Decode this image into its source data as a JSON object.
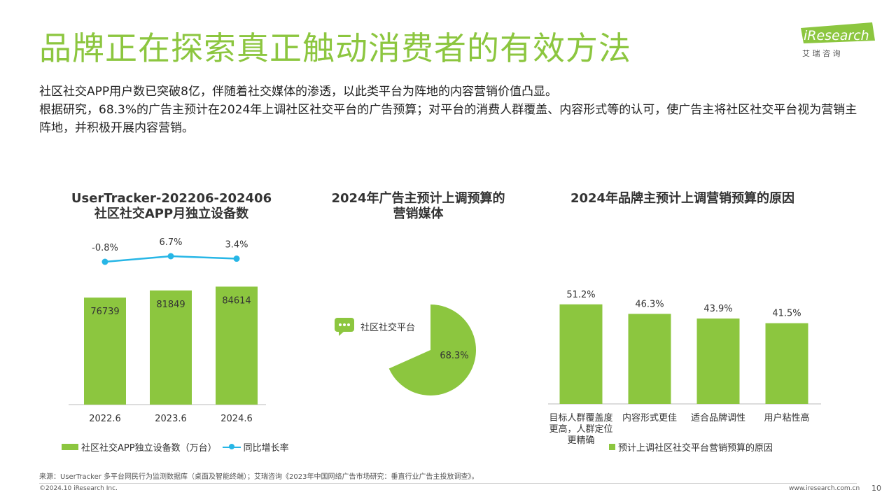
{
  "title": "品牌正在探索真正触动消费者的有效方法",
  "logo": {
    "brand": "iResearch",
    "cn": "艾 瑞 咨 询"
  },
  "paragraphs": [
    "社区社交APP用户数已突破8亿，伴随着社交媒体的渗透，以此类平台为阵地的内容营销价值凸显。",
    "根据研究，68.3%的广告主预计在2024年上调社区社交平台的广告预算；对平台的消费人群覆盖、内容形式等的认可，使广告主将社区社交平台视为营销主阵地，并积极开展内容营销。"
  ],
  "colors": {
    "accent": "#8cc63f",
    "line": "#27b6e6"
  },
  "chart_data": [
    {
      "type": "bar",
      "title_lines": [
        "UserTracker-202206-202406",
        "社区社交APP月独立设备数"
      ],
      "categories": [
        "2022.6",
        "2023.6",
        "2024.6"
      ],
      "series": [
        {
          "name": "社区社交APP独立设备数（万台）",
          "type": "bar",
          "values": [
            76739,
            81849,
            84614
          ]
        },
        {
          "name": "同比增长率",
          "type": "line",
          "values": [
            -0.8,
            6.7,
            3.4
          ],
          "labels": [
            "-0.8%",
            "6.7%",
            "3.4%"
          ]
        }
      ]
    },
    {
      "type": "pie",
      "title_lines": [
        "2024年广告主预计上调预算的",
        "营销媒体"
      ],
      "slices": [
        {
          "name": "社区社交平台",
          "value": 68.3,
          "label": "68.3%"
        }
      ],
      "icon": "chat-bubbles-icon"
    },
    {
      "type": "bar",
      "title_lines": [
        "2024年品牌主预计上调营销预算的原因"
      ],
      "categories": [
        "目标人群覆盖度更高，人群定位更精确",
        "内容形式更佳",
        "适合品牌调性",
        "用户粘性高"
      ],
      "category_lines": [
        [
          "目标人群覆盖度",
          "更高，人群定位",
          "更精确"
        ],
        [
          "内容形式更佳"
        ],
        [
          "适合品牌调性"
        ],
        [
          "用户粘性高"
        ]
      ],
      "series": [
        {
          "name": "预计上调社区社交平台营销预算的原因",
          "values": [
            51.2,
            46.3,
            43.9,
            41.5
          ],
          "labels": [
            "51.2%",
            "46.3%",
            "43.9%",
            "41.5%"
          ]
        }
      ]
    }
  ],
  "footer": {
    "source": "来源：UserTracker 多平台网民行为监测数据库（桌面及智能终端）；艾瑞咨询《2023年中国网络广告市场研究：垂直行业广告主投放调查》。",
    "copyright": "©2024.10 iResearch Inc.",
    "website": "www.iresearch.com.cn",
    "page": "10"
  }
}
